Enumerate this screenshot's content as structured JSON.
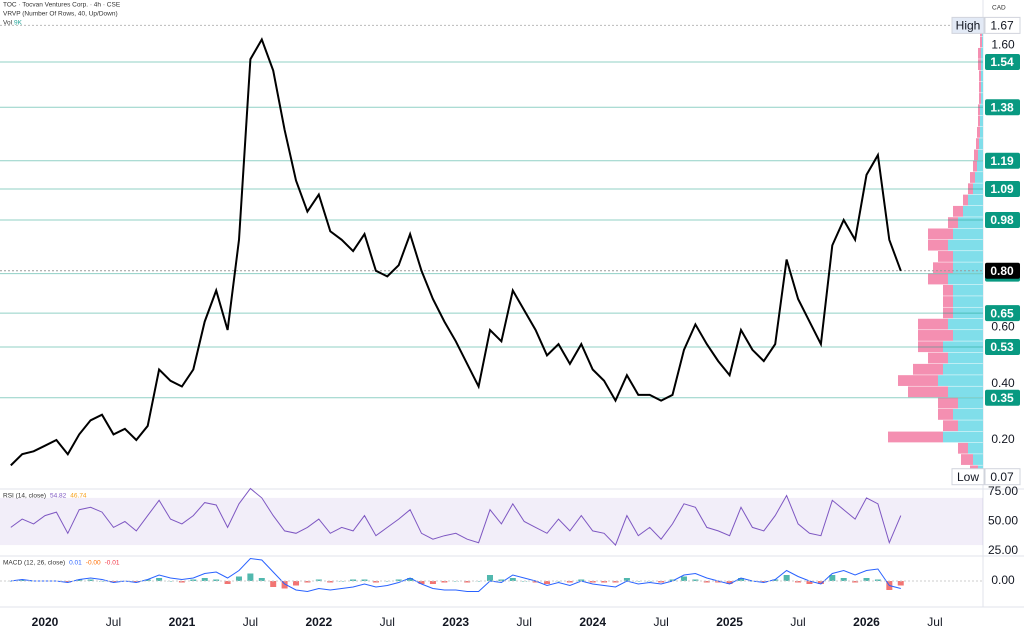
{
  "header": {
    "title": "TOC · Tocvan Ventures Corp. · 4h · CSE",
    "indicator": "VRVP (Number Of Rows, 40, Up/Down)",
    "volume_label": "Vol",
    "volume_value": "9K",
    "currency": "CAD"
  },
  "chart_data": [
    {
      "type": "line",
      "color": "#000000",
      "categories": [
        null,
        null,
        null,
        "2020",
        null,
        null,
        null,
        null,
        null,
        "Jul",
        null,
        null,
        null,
        null,
        null,
        "2021",
        null,
        null,
        null,
        null,
        null,
        "Jul",
        null,
        null,
        null,
        null,
        null,
        "2022",
        null,
        null,
        null,
        null,
        null,
        "Jul",
        null,
        null,
        null,
        null,
        null,
        "2023",
        null,
        null,
        null,
        null,
        null,
        "Jul",
        null,
        null,
        null,
        null,
        null,
        "2024",
        null,
        null,
        null,
        null,
        null,
        "Jul",
        null,
        null,
        null,
        null,
        null,
        "2025",
        null,
        null,
        null,
        null,
        null,
        "Jul",
        null,
        null,
        null,
        null,
        null,
        "2026",
        null,
        null,
        null,
        null,
        null,
        "Jul"
      ],
      "values": [
        0.11,
        0.15,
        0.16,
        0.18,
        0.2,
        0.15,
        0.22,
        0.27,
        0.29,
        0.22,
        0.24,
        0.2,
        0.25,
        0.45,
        0.41,
        0.39,
        0.45,
        0.62,
        0.73,
        0.59,
        0.91,
        1.55,
        1.62,
        1.51,
        1.3,
        1.12,
        1.01,
        1.07,
        0.94,
        0.91,
        0.87,
        0.93,
        0.8,
        0.78,
        0.82,
        0.93,
        0.8,
        0.7,
        0.62,
        0.55,
        0.47,
        0.39,
        0.59,
        0.55,
        0.73,
        0.66,
        0.59,
        0.5,
        0.54,
        0.47,
        0.54,
        0.45,
        0.41,
        0.34,
        0.43,
        0.36,
        0.36,
        0.34,
        0.36,
        0.52,
        0.61,
        0.54,
        0.48,
        0.43,
        0.59,
        0.52,
        0.48,
        0.54,
        0.84,
        0.7,
        0.62,
        0.54,
        0.89,
        0.98,
        0.91,
        1.14,
        1.21,
        0.91,
        0.8,
        null,
        null,
        null
      ],
      "ylim": [
        0.03,
        1.76
      ],
      "yticks": [
        {
          "value": 0.2,
          "label": "0.20"
        },
        {
          "value": 0.4,
          "label": "0.40"
        },
        {
          "value": 0.6,
          "label": "0.60"
        },
        {
          "value": 1.6,
          "label": "1.60"
        }
      ],
      "levels": [
        1.54,
        1.38,
        1.19,
        1.09,
        0.98,
        0.79,
        0.65,
        0.53,
        0.35
      ],
      "level_color": "#089981",
      "current": {
        "value": 0.8,
        "label": "0.80"
      },
      "high": {
        "label": "High",
        "value": 1.67
      },
      "low": {
        "label": "Low",
        "value": 0.07
      },
      "volume_profile": {
        "bins": [
          0.07,
          0.11,
          0.15,
          0.19,
          0.23,
          0.27,
          0.31,
          0.35,
          0.39,
          0.43,
          0.47,
          0.51,
          0.55,
          0.59,
          0.63,
          0.67,
          0.71,
          0.75,
          0.79,
          0.83,
          0.87,
          0.91,
          0.95,
          0.99,
          1.03,
          1.07,
          1.11,
          1.15,
          1.19,
          1.23,
          1.27,
          1.31,
          1.35,
          1.39,
          1.43,
          1.47,
          1.51,
          1.55,
          1.59,
          1.63,
          1.67
        ],
        "up": [
          5,
          10,
          15,
          40,
          25,
          30,
          25,
          35,
          45,
          40,
          35,
          40,
          30,
          35,
          30,
          30,
          30,
          35,
          30,
          30,
          35,
          30,
          25,
          20,
          15,
          10,
          8,
          6,
          5,
          4,
          3,
          3,
          3,
          2,
          2,
          2,
          2,
          2,
          1,
          1
        ],
        "down": [
          8,
          12,
          10,
          55,
          15,
          15,
          20,
          40,
          40,
          30,
          20,
          25,
          35,
          30,
          10,
          10,
          10,
          20,
          20,
          15,
          20,
          25,
          10,
          10,
          5,
          5,
          5,
          4,
          4,
          3,
          3,
          2,
          2,
          2,
          2,
          2,
          3,
          3,
          2,
          2
        ],
        "up_color": "#80deea",
        "down_color": "#f48fb1"
      }
    },
    {
      "type": "line",
      "title": "RSI (14, close)",
      "color": "#7e57c2",
      "readouts": [
        {
          "value": 54.82,
          "color": "#7e57c2"
        },
        {
          "value": 46.74,
          "color": "#f7a21b"
        }
      ],
      "values": [
        45,
        52,
        48,
        55,
        58,
        40,
        60,
        62,
        58,
        45,
        50,
        42,
        55,
        68,
        52,
        48,
        55,
        66,
        64,
        45,
        65,
        78,
        70,
        55,
        42,
        40,
        45,
        52,
        40,
        45,
        42,
        55,
        38,
        45,
        52,
        60,
        40,
        35,
        38,
        40,
        35,
        32,
        60,
        48,
        65,
        50,
        45,
        40,
        52,
        42,
        55,
        42,
        40,
        30,
        55,
        38,
        45,
        35,
        48,
        65,
        62,
        45,
        42,
        38,
        62,
        45,
        42,
        55,
        72,
        48,
        40,
        38,
        68,
        60,
        52,
        70,
        65,
        32,
        55,
        null,
        null,
        null
      ],
      "ylim": [
        21.6,
        76.7
      ],
      "yticks": [
        {
          "value": 75,
          "label": "75.00"
        },
        {
          "value": 50,
          "label": "50.00"
        },
        {
          "value": 25,
          "label": "25.00"
        }
      ],
      "band": [
        30,
        70
      ]
    },
    {
      "type": "macd",
      "title": "MACD (12, 26, close)",
      "color": "#2962ff",
      "up_color": "#26a69a",
      "down_color": "#ef5350",
      "readouts": [
        {
          "value": 0.01,
          "color": "#2962ff"
        },
        {
          "value": 0,
          "label": "-0.00",
          "color": "#ff6d00"
        },
        {
          "value": -0.01,
          "color": "#f23645"
        }
      ],
      "values": [
        0,
        0.01,
        0,
        0,
        0,
        -0.01,
        0.01,
        0.02,
        0.01,
        -0.01,
        0,
        -0.01,
        0.01,
        0.04,
        0.02,
        0.01,
        0.02,
        0.05,
        0.06,
        0.02,
        0.07,
        0.15,
        0.14,
        0.06,
        -0.02,
        -0.06,
        -0.07,
        -0.05,
        -0.06,
        -0.05,
        -0.04,
        -0.02,
        -0.04,
        -0.03,
        -0.01,
        0.02,
        -0.02,
        -0.05,
        -0.06,
        -0.06,
        -0.07,
        -0.07,
        0,
        -0.01,
        0.04,
        0.02,
        0,
        -0.03,
        -0.01,
        -0.03,
        0,
        -0.02,
        -0.03,
        -0.04,
        0,
        -0.02,
        -0.01,
        -0.02,
        0,
        0.04,
        0.05,
        0.02,
        0,
        -0.02,
        0.02,
        0,
        -0.01,
        0.01,
        0.07,
        0.03,
        0,
        -0.02,
        0.05,
        0.07,
        0.04,
        0.07,
        0.08,
        -0.03,
        -0.05,
        null,
        null,
        null
      ],
      "histogram": [
        0,
        0.01,
        0,
        0,
        0,
        -0.01,
        0.01,
        0.01,
        0,
        -0.01,
        0,
        -0.01,
        0.01,
        0.02,
        0,
        -0.01,
        0.01,
        0.02,
        0.01,
        -0.02,
        0.03,
        0.05,
        0.02,
        -0.04,
        -0.05,
        -0.03,
        -0.01,
        0.01,
        -0.01,
        0,
        0.01,
        0.01,
        -0.01,
        0,
        0.01,
        0.02,
        -0.02,
        -0.02,
        -0.01,
        0,
        -0.01,
        0,
        0.04,
        0.01,
        0.02,
        0,
        -0.01,
        -0.02,
        0,
        -0.01,
        0.01,
        -0.01,
        -0.01,
        -0.01,
        0.02,
        0,
        0,
        -0.01,
        0.01,
        0.03,
        0.01,
        -0.01,
        -0.01,
        -0.02,
        0.02,
        0,
        -0.01,
        0.01,
        0.04,
        -0.01,
        -0.02,
        -0.02,
        0.04,
        0.02,
        -0.01,
        0.02,
        0.01,
        -0.06,
        -0.03,
        null,
        null,
        null
      ],
      "ylim": [
        -0.16,
        0.16
      ],
      "yticks": [
        {
          "value": 0,
          "label": "0.00"
        }
      ]
    }
  ]
}
